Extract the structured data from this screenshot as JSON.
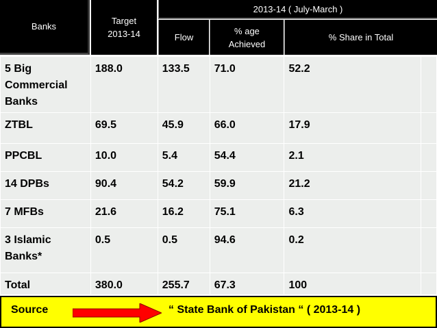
{
  "header": {
    "banks": "Banks",
    "target_line1": "Target",
    "target_line2": "2013-14",
    "period": "2013-14 ( July-March )",
    "flow": "Flow",
    "achieved_line1": "% age",
    "achieved_line2": "Achieved",
    "share": "% Share in Total"
  },
  "rows": [
    {
      "bank_lines": [
        "5 Big",
        "Commercial",
        "Banks"
      ],
      "target": "188.0",
      "flow": "133.5",
      "achieved": "71.0",
      "share": "52.2"
    },
    {
      "bank_lines": [
        "ZTBL"
      ],
      "target": "69.5",
      "flow": "45.9",
      "achieved": "66.0",
      "share": "17.9"
    },
    {
      "bank_lines": [
        "PPCBL"
      ],
      "target": "10.0",
      "flow": "5.4",
      "achieved": "54.4",
      "share": "2.1"
    },
    {
      "bank_lines": [
        "14 DPBs"
      ],
      "target": "90.4",
      "flow": "54.2",
      "achieved": "59.9",
      "share": "21.2"
    },
    {
      "bank_lines": [
        "7 MFBs"
      ],
      "target": "21.6",
      "flow": "16.2",
      "achieved": "75.1",
      "share": "6.3"
    },
    {
      "bank_lines": [
        "3 Islamic",
        "Banks*"
      ],
      "target": "0.5",
      "flow": "0.5",
      "achieved": "94.6",
      "share": "0.2"
    },
    {
      "bank_lines": [
        "Total"
      ],
      "target": "380.0",
      "flow": "255.7",
      "achieved": "67.3",
      "share": "100"
    }
  ],
  "source": {
    "label": "Source",
    "text": "“ State Bank of Pakistan “ ( 2013-14 )",
    "arrow_icon": "right-arrow-icon",
    "arrow_color": "#ff0000"
  },
  "colors": {
    "header_bg": "#000000",
    "body_bg": "#eceeec",
    "source_bg": "#ffff00"
  }
}
